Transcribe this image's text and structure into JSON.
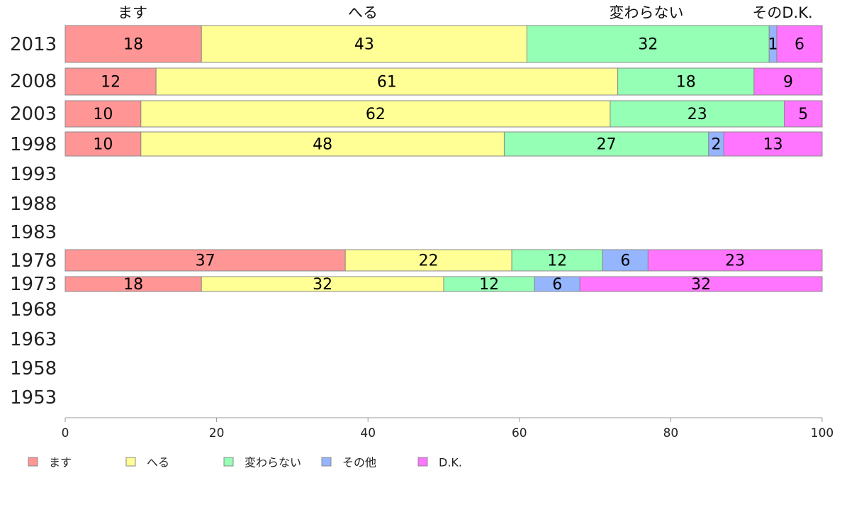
{
  "chart_data": {
    "type": "bar",
    "orientation": "horizontal",
    "stacked": true,
    "categories": [
      "2013",
      "2008",
      "2003",
      "1998",
      "1993",
      "1988",
      "1983",
      "1978",
      "1973",
      "1968",
      "1963",
      "1958",
      "1953"
    ],
    "series": [
      {
        "name": "ます",
        "color": "#ff9595",
        "values": [
          18,
          12,
          10,
          10,
          null,
          null,
          null,
          37,
          18,
          null,
          null,
          null,
          null
        ]
      },
      {
        "name": "へる",
        "color": "#ffff95",
        "values": [
          43,
          61,
          62,
          48,
          null,
          null,
          null,
          22,
          32,
          null,
          null,
          null,
          null
        ]
      },
      {
        "name": "変わらない",
        "color": "#95ffb5",
        "values": [
          32,
          18,
          23,
          27,
          null,
          null,
          null,
          12,
          12,
          null,
          null,
          null,
          null
        ]
      },
      {
        "name": "その他",
        "color": "#95b5ff",
        "values": [
          1,
          0,
          0,
          2,
          null,
          null,
          null,
          6,
          6,
          null,
          null,
          null,
          null
        ]
      },
      {
        "name": "D.K.",
        "color": "#ff75ff",
        "values": [
          6,
          9,
          5,
          13,
          null,
          null,
          null,
          23,
          32,
          null,
          null,
          null,
          null
        ]
      }
    ],
    "top_labels": [
      "ます",
      "へる",
      "変わらない",
      "そのD.K."
    ],
    "xlim": [
      0,
      100
    ],
    "xticks": [
      0,
      20,
      40,
      60,
      80,
      100
    ],
    "grid": false,
    "legend": "bottom-left"
  }
}
